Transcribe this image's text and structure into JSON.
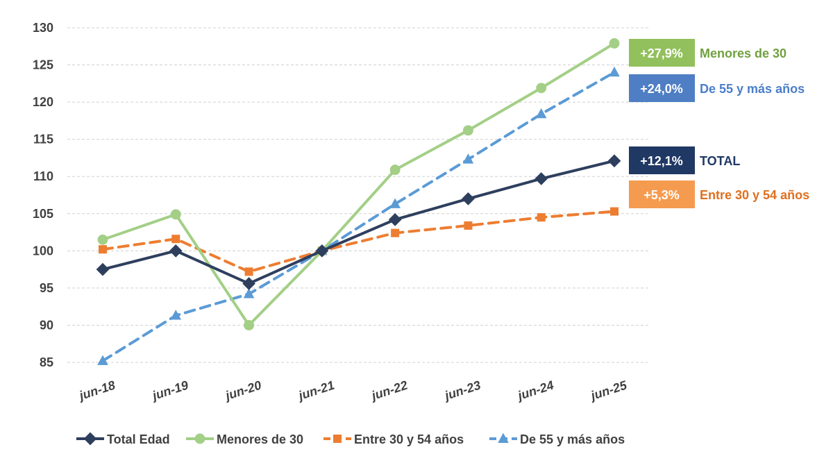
{
  "chart_data": {
    "type": "line",
    "categories": [
      "jun-18",
      "jun-19",
      "jun-20",
      "jun-21",
      "jun-22",
      "jun-23",
      "jun-24",
      "jun-25"
    ],
    "ylim": [
      85,
      130
    ],
    "yticks": [
      85,
      90,
      95,
      100,
      105,
      110,
      115,
      120,
      125,
      130
    ],
    "grid": true,
    "legend_position": "bottom",
    "series": [
      {
        "name": "Total Edad",
        "color": "#2e3f5e",
        "style": "solid",
        "marker": "diamond",
        "values": [
          97.5,
          100.0,
          95.6,
          100.0,
          104.2,
          107.0,
          109.7,
          112.1
        ]
      },
      {
        "name": "Menores de 30",
        "color": "#a3cf86",
        "style": "solid",
        "marker": "circle",
        "values": [
          101.5,
          104.9,
          90.0,
          100.0,
          110.9,
          116.2,
          121.9,
          127.9
        ]
      },
      {
        "name": "Entre 30 y 54 años",
        "color": "#ed7d31",
        "style": "dashed",
        "marker": "square",
        "values": [
          100.2,
          101.6,
          97.2,
          100.0,
          102.4,
          103.4,
          104.5,
          105.3
        ]
      },
      {
        "name": "De 55 y más años",
        "color": "#5b9bd5",
        "style": "dashed",
        "marker": "triangle",
        "values": [
          85.2,
          91.3,
          94.2,
          100.0,
          106.3,
          112.3,
          118.4,
          124.0
        ]
      }
    ],
    "annotations": [
      {
        "badge": "+27,9%",
        "label": "Menores de 30",
        "badge_color": "#92c05c",
        "label_color": "#70a03e"
      },
      {
        "badge": "+24,0%",
        "label": "De 55 y más años",
        "badge_color": "#4f7ec4",
        "label_color": "#4a7ec8"
      },
      {
        "badge": "+12,1%",
        "label": "TOTAL",
        "badge_color": "#203864",
        "label_color": "#203864"
      },
      {
        "badge": "+5,3%",
        "label": "Entre 30 y 54 años",
        "badge_color": "#f59b4f",
        "label_color": "#e06f1e"
      }
    ]
  }
}
